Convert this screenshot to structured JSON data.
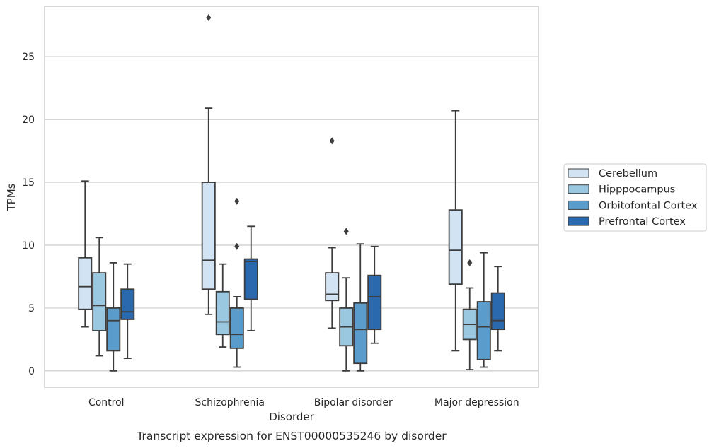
{
  "chart_data": {
    "type": "box",
    "xlabel": "Disorder",
    "ylabel": "TPMs",
    "caption": "Transcript expression for ENST00000535246 by disorder",
    "ylim": [
      -1.3,
      29.0
    ],
    "yticks": [
      0,
      5,
      10,
      15,
      20,
      25
    ],
    "grid": "horizontal",
    "legend_position": "outside-right",
    "categories": [
      "Control",
      "Schizophrenia",
      "Bipolar disorder",
      "Major depression"
    ],
    "series": [
      {
        "name": "Cerebellum",
        "color": "#d2e3f3",
        "boxes": [
          {
            "whisker_low": 3.5,
            "q1": 4.9,
            "median": 6.7,
            "q3": 9.0,
            "whisker_high": 15.1,
            "outliers": []
          },
          {
            "whisker_low": 4.5,
            "q1": 6.5,
            "median": 8.8,
            "q3": 15.0,
            "whisker_high": 20.9,
            "outliers": [
              28.1
            ]
          },
          {
            "whisker_low": 3.4,
            "q1": 5.6,
            "median": 6.1,
            "q3": 7.8,
            "whisker_high": 9.8,
            "outliers": [
              18.3
            ]
          },
          {
            "whisker_low": 1.6,
            "q1": 6.9,
            "median": 9.6,
            "q3": 12.8,
            "whisker_high": 20.7,
            "outliers": []
          }
        ]
      },
      {
        "name": "Hipppocampus",
        "color": "#9ac8e0",
        "boxes": [
          {
            "whisker_low": 1.2,
            "q1": 3.2,
            "median": 5.2,
            "q3": 7.8,
            "whisker_high": 10.6,
            "outliers": []
          },
          {
            "whisker_low": 1.9,
            "q1": 2.9,
            "median": 3.9,
            "q3": 6.3,
            "whisker_high": 8.5,
            "outliers": []
          },
          {
            "whisker_low": 0.0,
            "q1": 2.0,
            "median": 3.5,
            "q3": 5.0,
            "whisker_high": 7.4,
            "outliers": [
              11.1
            ]
          },
          {
            "whisker_low": 0.1,
            "q1": 2.5,
            "median": 3.7,
            "q3": 4.9,
            "whisker_high": 6.6,
            "outliers": [
              8.6
            ]
          }
        ]
      },
      {
        "name": "Orbitofontal Cortex",
        "color": "#5a9ccb",
        "boxes": [
          {
            "whisker_low": 0.0,
            "q1": 1.6,
            "median": 4.0,
            "q3": 5.0,
            "whisker_high": 8.6,
            "outliers": []
          },
          {
            "whisker_low": 0.3,
            "q1": 1.8,
            "median": 2.9,
            "q3": 5.0,
            "whisker_high": 5.9,
            "outliers": [
              9.9,
              13.5
            ]
          },
          {
            "whisker_low": 0.0,
            "q1": 0.6,
            "median": 3.3,
            "q3": 5.4,
            "whisker_high": 10.1,
            "outliers": []
          },
          {
            "whisker_low": 0.3,
            "q1": 0.9,
            "median": 3.5,
            "q3": 5.5,
            "whisker_high": 9.4,
            "outliers": []
          }
        ]
      },
      {
        "name": "Prefrontal Cortex",
        "color": "#2a69ad",
        "boxes": [
          {
            "whisker_low": 1.0,
            "q1": 4.1,
            "median": 4.7,
            "q3": 6.5,
            "whisker_high": 8.5,
            "outliers": []
          },
          {
            "whisker_low": 3.2,
            "q1": 5.7,
            "median": 8.7,
            "q3": 8.9,
            "whisker_high": 11.5,
            "outliers": []
          },
          {
            "whisker_low": 2.2,
            "q1": 3.3,
            "median": 5.9,
            "q3": 7.6,
            "whisker_high": 9.9,
            "outliers": []
          },
          {
            "whisker_low": 1.6,
            "q1": 3.3,
            "median": 4.0,
            "q3": 6.2,
            "whisker_high": 8.3,
            "outliers": []
          }
        ]
      }
    ]
  }
}
